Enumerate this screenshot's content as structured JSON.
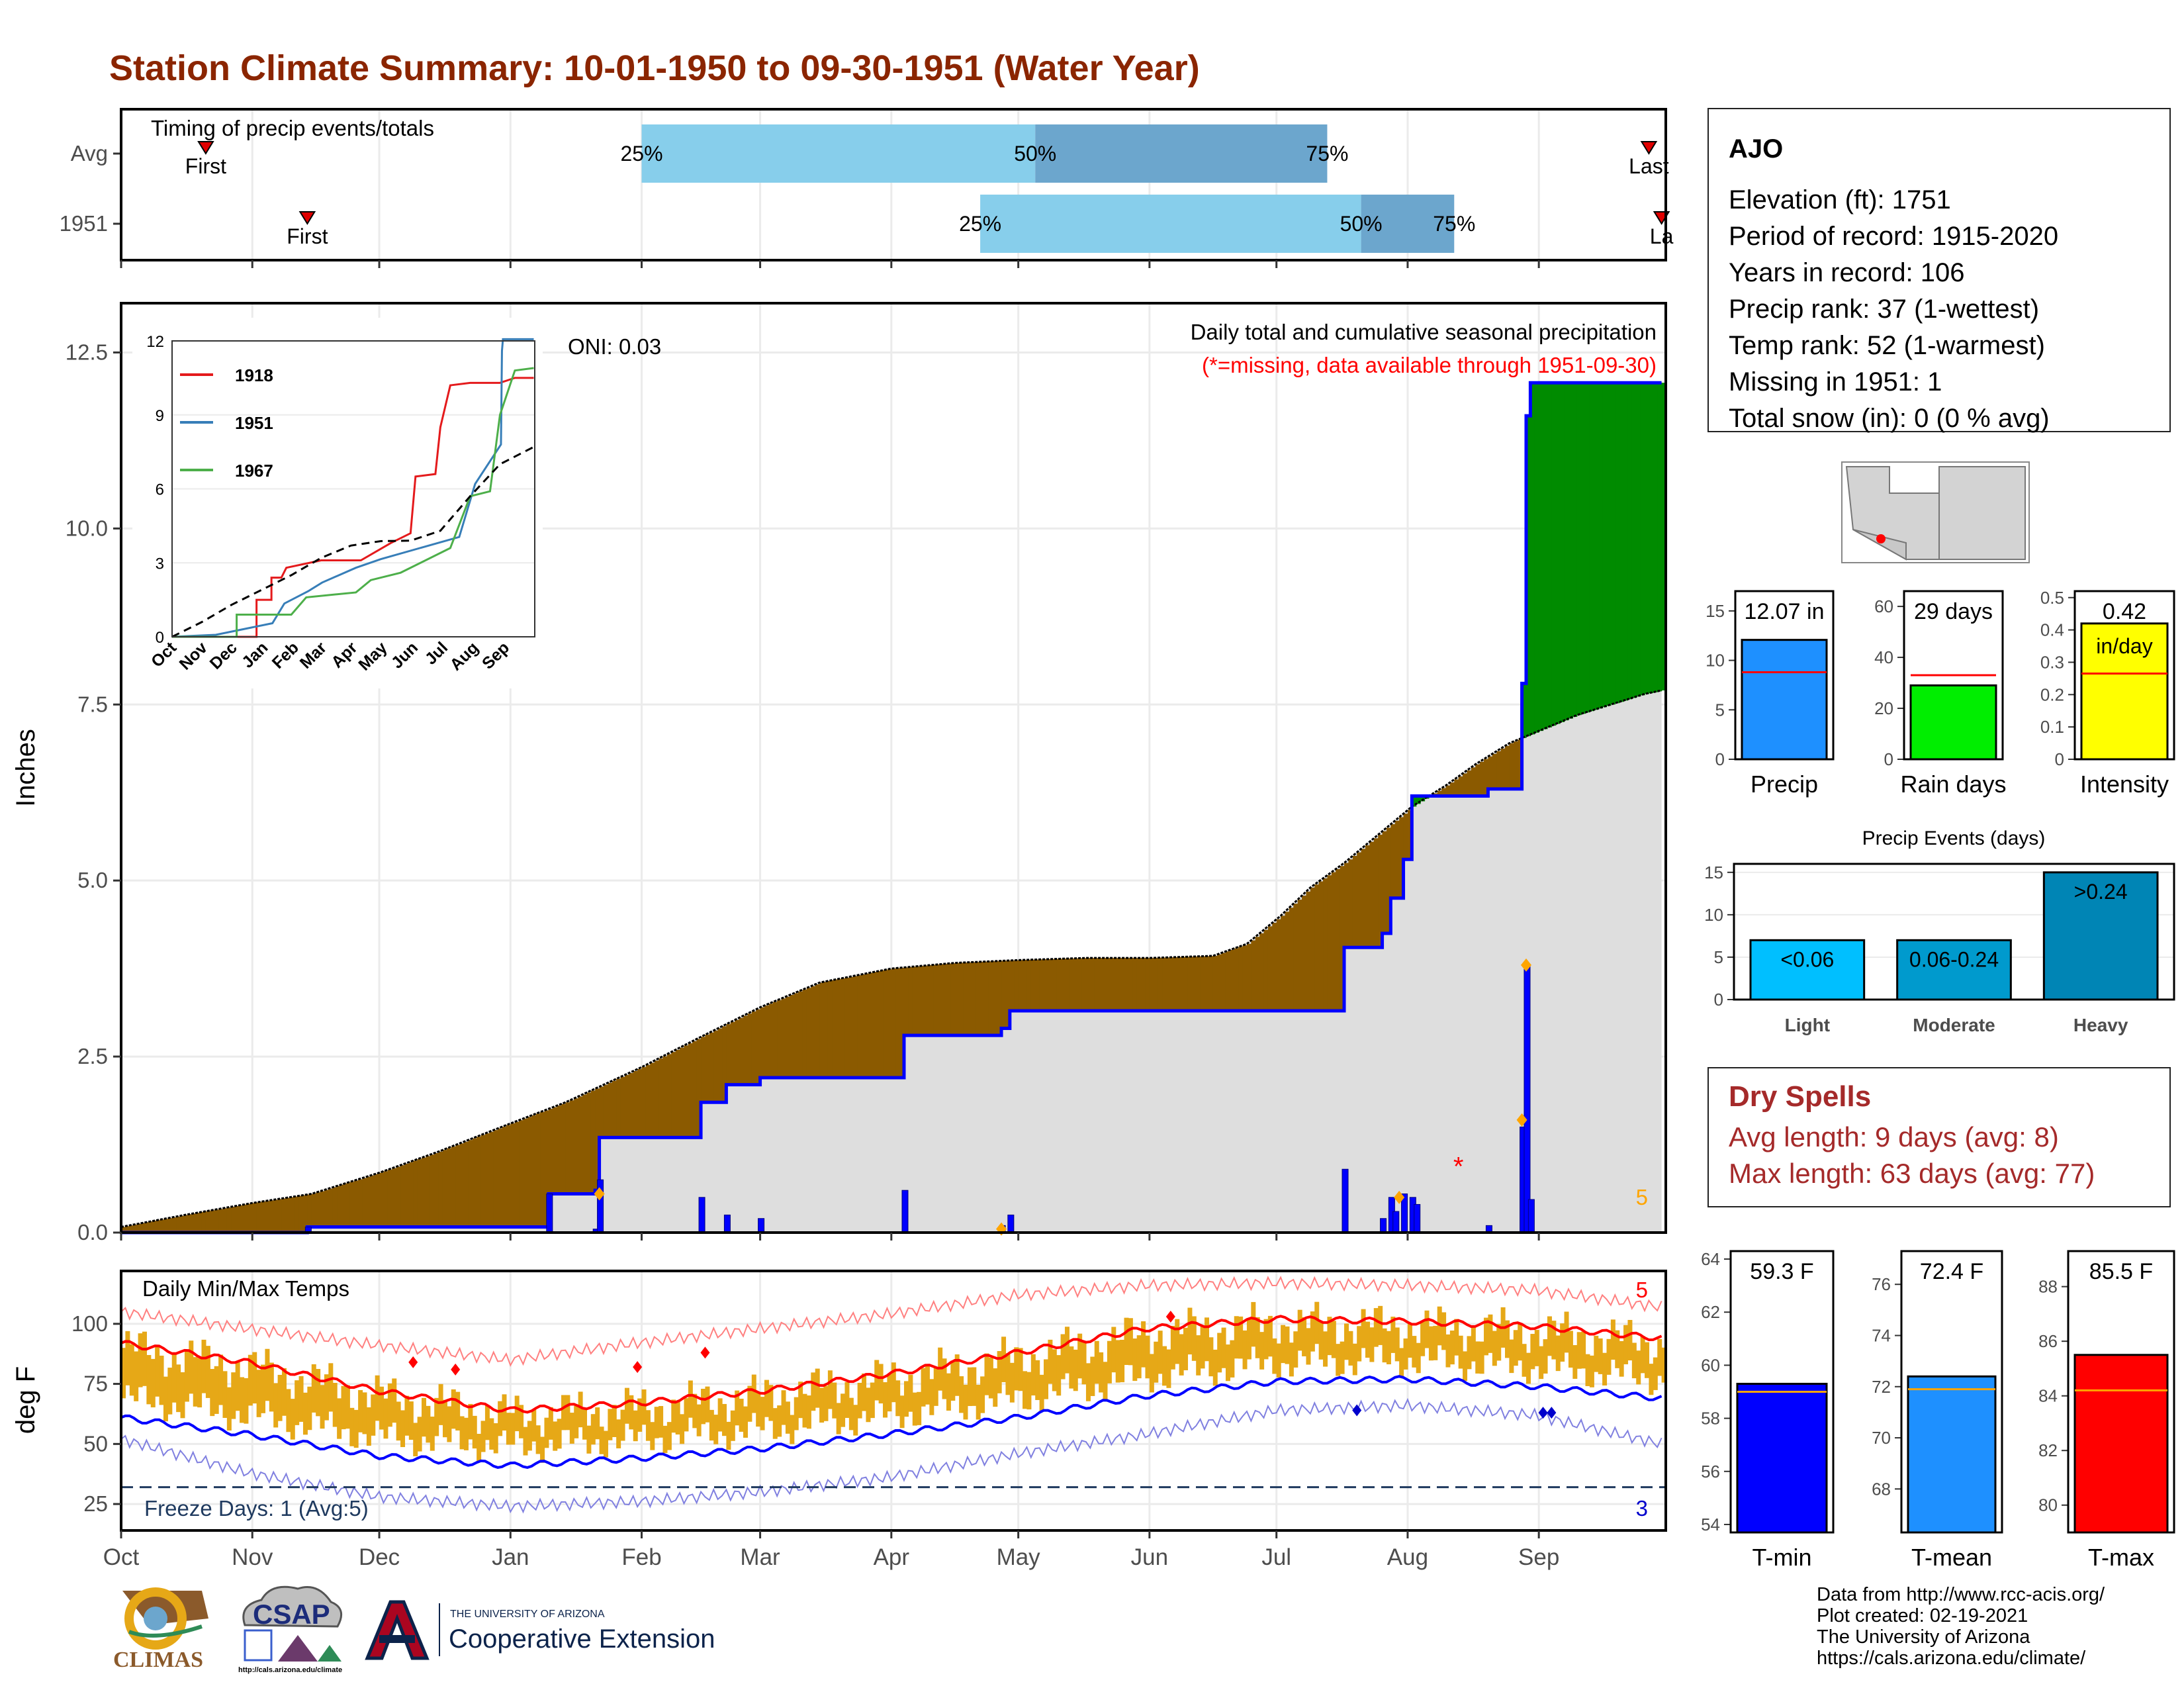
{
  "title": "Station Climate Summary: 10-01-1950 to 09-30-1951 (Water Year)",
  "station": {
    "name": "AJO",
    "lines": [
      "Elevation (ft): 1751",
      "Period of record: 1915-2020",
      "Years in record: 106",
      "Precip rank: 37 (1-wettest)",
      "Temp rank: 52 (1-warmest)",
      "Missing in 1951: 1",
      "Total snow (in): 0 (0 % avg)"
    ]
  },
  "dry_spells": {
    "title": "Dry Spells",
    "avg_length": "Avg length: 9 days (avg: 8)",
    "max_length": "Max length: 63 days (avg: 77)"
  },
  "credits": [
    "Data from http://www.rcc-acis.org/",
    "Plot created: 02-19-2021",
    "The University of Arizona",
    "https://cals.arizona.edu/climate/"
  ],
  "logos": {
    "climas": "CLIMAS",
    "csap": "CSAP",
    "csap_url": "http://cals.arizona.edu/climate",
    "ua_small": "THE UNIVERSITY OF ARIZONA",
    "ua_big": "Cooperative Extension"
  },
  "colors": {
    "title": "#8B2500",
    "brown_deficit": "#8B5A00",
    "green_surplus": "#008B00",
    "avg_fill": "#DEDEDE",
    "cum_line": "#0000FF",
    "timing_light": "#87CEEB",
    "timing_dark": "#6CA6CD",
    "temp_bars": "#E6A817",
    "max_line": "#FF0000",
    "min_line": "#0000FF"
  },
  "months": [
    "Oct",
    "Nov",
    "Dec",
    "Jan",
    "Feb",
    "Mar",
    "Apr",
    "May",
    "Jun",
    "Jul",
    "Aug",
    "Sep"
  ],
  "chart_data": [
    {
      "type": "bar",
      "name": "timing",
      "title": "Timing of precip events/totals",
      "rows": [
        {
          "label": "Avg",
          "first_day": 20,
          "q25_day": 123,
          "q50_day": 216,
          "q75_day": 285,
          "last_day": 361,
          "labels": {
            "first": "First",
            "last": "Last",
            "q25": "25%",
            "q50": "50%",
            "q75": "75%"
          }
        },
        {
          "label": "1951",
          "first_day": 44,
          "q25_day": 203,
          "q50_day": 293,
          "q75_day": 315,
          "last_day": 364,
          "labels": {
            "first": "First",
            "last": "La",
            "q25": "25%",
            "q50": "50%",
            "q75": "75%"
          }
        }
      ]
    },
    {
      "type": "area",
      "name": "cumulative_precip",
      "title": "Daily total and cumulative seasonal precipitation",
      "subtitle": "(*=missing, data available through 1951-09-30)",
      "annotation": "ONI: 0.03",
      "ylabel": "Inches",
      "ylim": [
        0,
        13
      ],
      "yticks": [
        0.0,
        2.5,
        5.0,
        7.5,
        10.0,
        12.5
      ],
      "max_daily_count": "5",
      "avg_cumulative": [
        [
          0,
          0.08
        ],
        [
          15,
          0.25
        ],
        [
          31,
          0.42
        ],
        [
          45,
          0.55
        ],
        [
          61,
          0.85
        ],
        [
          75,
          1.15
        ],
        [
          92,
          1.55
        ],
        [
          105,
          1.85
        ],
        [
          123,
          2.35
        ],
        [
          136,
          2.75
        ],
        [
          151,
          3.2
        ],
        [
          165,
          3.55
        ],
        [
          182,
          3.75
        ],
        [
          197,
          3.83
        ],
        [
          212,
          3.87
        ],
        [
          228,
          3.9
        ],
        [
          243,
          3.9
        ],
        [
          258,
          3.93
        ],
        [
          266,
          4.1
        ],
        [
          274,
          4.5
        ],
        [
          281,
          4.9
        ],
        [
          289,
          5.25
        ],
        [
          297,
          5.65
        ],
        [
          305,
          6.05
        ],
        [
          313,
          6.35
        ],
        [
          320,
          6.65
        ],
        [
          328,
          6.95
        ],
        [
          336,
          7.15
        ],
        [
          344,
          7.35
        ],
        [
          352,
          7.5
        ],
        [
          360,
          7.65
        ],
        [
          364,
          7.7
        ]
      ],
      "obs_cumulative": [
        [
          0,
          0
        ],
        [
          44,
          0
        ],
        [
          44,
          0.08
        ],
        [
          101,
          0.08
        ],
        [
          101,
          0.55
        ],
        [
          112,
          0.55
        ],
        [
          112,
          0.6
        ],
        [
          113,
          0.6
        ],
        [
          113,
          1.35
        ],
        [
          137,
          1.35
        ],
        [
          137,
          1.85
        ],
        [
          143,
          1.85
        ],
        [
          143,
          2.1
        ],
        [
          151,
          2.1
        ],
        [
          151,
          2.2
        ],
        [
          185,
          2.2
        ],
        [
          185,
          2.8
        ],
        [
          208,
          2.8
        ],
        [
          208,
          2.9
        ],
        [
          210,
          2.9
        ],
        [
          210,
          3.15
        ],
        [
          289,
          3.15
        ],
        [
          289,
          4.05
        ],
        [
          298,
          4.05
        ],
        [
          298,
          4.25
        ],
        [
          300,
          4.25
        ],
        [
          300,
          4.75
        ],
        [
          303,
          4.75
        ],
        [
          303,
          5.3
        ],
        [
          305,
          5.3
        ],
        [
          305,
          6.2
        ],
        [
          323,
          6.2
        ],
        [
          323,
          6.3
        ],
        [
          331,
          6.3
        ],
        [
          331,
          7.8
        ],
        [
          332,
          7.8
        ],
        [
          332,
          11.6
        ],
        [
          333,
          11.6
        ],
        [
          333,
          12.07
        ],
        [
          364,
          12.07
        ]
      ],
      "daily_precip": [
        [
          44,
          0.08
        ],
        [
          101,
          0.55
        ],
        [
          112,
          0.05
        ],
        [
          113,
          0.75
        ],
        [
          137,
          0.5
        ],
        [
          143,
          0.25
        ],
        [
          151,
          0.2
        ],
        [
          185,
          0.6
        ],
        [
          208,
          0.1
        ],
        [
          210,
          0.25
        ],
        [
          289,
          0.9
        ],
        [
          298,
          0.2
        ],
        [
          300,
          0.5
        ],
        [
          301,
          0.3
        ],
        [
          303,
          0.55
        ],
        [
          305,
          0.5
        ],
        [
          306,
          0.4
        ],
        [
          323,
          0.1
        ],
        [
          331,
          1.5
        ],
        [
          332,
          3.8
        ],
        [
          333,
          0.47
        ]
      ],
      "event_markers": [
        [
          113,
          0.55
        ],
        [
          208,
          0.05
        ],
        [
          302,
          0.5
        ],
        [
          331,
          1.6
        ],
        [
          332,
          3.8
        ]
      ],
      "missing_markers": [
        [
          316,
          1.0
        ]
      ]
    },
    {
      "type": "line",
      "name": "inset_cumulative",
      "series": [
        {
          "name": "1918",
          "points": [
            [
              0,
              0
            ],
            [
              85,
              0
            ],
            [
              85,
              1.5
            ],
            [
              100,
              1.5
            ],
            [
              100,
              2.4
            ],
            [
              110,
              2.4
            ],
            [
              115,
              2.8
            ],
            [
              150,
              3.1
            ],
            [
              190,
              3.1
            ],
            [
              220,
              3.8
            ],
            [
              240,
              4.2
            ],
            [
              245,
              6.5
            ],
            [
              265,
              6.6
            ],
            [
              270,
              8.5
            ],
            [
              280,
              10.2
            ],
            [
              300,
              10.3
            ],
            [
              330,
              10.3
            ],
            [
              345,
              10.5
            ],
            [
              364,
              10.5
            ]
          ]
        },
        {
          "name": "1951",
          "points": [
            [
              0,
              0
            ],
            [
              44,
              0.08
            ],
            [
              101,
              0.55
            ],
            [
              113,
              1.35
            ],
            [
              137,
              1.85
            ],
            [
              151,
              2.2
            ],
            [
              185,
              2.8
            ],
            [
              210,
              3.15
            ],
            [
              289,
              4.05
            ],
            [
              305,
              6.2
            ],
            [
              331,
              7.8
            ],
            [
              332,
              11.6
            ],
            [
              333,
              12.07
            ],
            [
              364,
              12.07
            ]
          ]
        },
        {
          "name": "1967",
          "points": [
            [
              0,
              0
            ],
            [
              65,
              0
            ],
            [
              65,
              0.9
            ],
            [
              120,
              0.9
            ],
            [
              135,
              1.6
            ],
            [
              185,
              1.8
            ],
            [
              200,
              2.3
            ],
            [
              230,
              2.6
            ],
            [
              280,
              3.6
            ],
            [
              300,
              5.7
            ],
            [
              320,
              5.9
            ],
            [
              330,
              9.0
            ],
            [
              345,
              10.8
            ],
            [
              364,
              10.9
            ]
          ]
        }
      ],
      "average": [
        [
          0,
          0
        ],
        [
          30,
          0.6
        ],
        [
          60,
          1.3
        ],
        [
          90,
          1.9
        ],
        [
          120,
          2.5
        ],
        [
          150,
          3.2
        ],
        [
          180,
          3.7
        ],
        [
          210,
          3.88
        ],
        [
          240,
          3.9
        ],
        [
          270,
          4.3
        ],
        [
          300,
          5.7
        ],
        [
          330,
          7.0
        ],
        [
          364,
          7.7
        ]
      ],
      "ylim": [
        0,
        12
      ],
      "yticks": [
        0,
        3,
        6,
        9,
        12
      ]
    },
    {
      "type": "bar",
      "name": "summary_precip",
      "panels": [
        {
          "xlabel": "Precip",
          "label": "12.07 in",
          "value": 12.07,
          "avg": 8.8,
          "ylim": [
            0,
            17
          ],
          "yticks": [
            0,
            5,
            10,
            15
          ],
          "color": "#1E90FF"
        },
        {
          "xlabel": "Rain days",
          "label": "29 days",
          "value": 29,
          "avg": 33,
          "ylim": [
            0,
            66
          ],
          "yticks": [
            0,
            20,
            40,
            60
          ],
          "color": "#00EE00"
        },
        {
          "xlabel": "Intensity",
          "label": "0.42",
          "label2": "in/day",
          "value": 0.42,
          "avg": 0.265,
          "ylim": [
            0,
            0.52
          ],
          "yticks": [
            0.0,
            0.1,
            0.2,
            0.3,
            0.4,
            0.5
          ],
          "color": "#FFFF00"
        }
      ]
    },
    {
      "type": "bar",
      "name": "precip_events",
      "title": "Precip Events (days)",
      "categories": [
        "Light",
        "Moderate",
        "Heavy"
      ],
      "labels": [
        "<0.06",
        "0.06-0.24",
        ">0.24"
      ],
      "values": [
        7,
        7,
        15
      ],
      "ylim": [
        0,
        16
      ],
      "yticks": [
        0,
        5,
        10,
        15
      ]
    },
    {
      "type": "line",
      "name": "daily_temps",
      "title": "Daily Min/Max Temps",
      "ylabel": "deg F",
      "ylim": [
        14,
        122
      ],
      "yticks": [
        25,
        50,
        75,
        100
      ],
      "freeze_line": 32,
      "freeze_label": "Freeze Days: 1 (Avg:5)",
      "max_records_count": "5",
      "min_records_count": "3",
      "avg_max": [
        [
          0,
          92
        ],
        [
          30,
          84
        ],
        [
          61,
          72
        ],
        [
          92,
          64
        ],
        [
          122,
          67
        ],
        [
          151,
          72
        ],
        [
          181,
          79
        ],
        [
          212,
          88
        ],
        [
          242,
          98
        ],
        [
          273,
          102
        ],
        [
          304,
          101
        ],
        [
          334,
          99
        ],
        [
          364,
          94
        ]
      ],
      "avg_min": [
        [
          0,
          61
        ],
        [
          30,
          54
        ],
        [
          61,
          45
        ],
        [
          92,
          41
        ],
        [
          122,
          44
        ],
        [
          151,
          48
        ],
        [
          181,
          54
        ],
        [
          212,
          61
        ],
        [
          242,
          70
        ],
        [
          273,
          76
        ],
        [
          304,
          77
        ],
        [
          334,
          74
        ],
        [
          364,
          69
        ]
      ],
      "record_max": [
        [
          0,
          105
        ],
        [
          30,
          98
        ],
        [
          61,
          91
        ],
        [
          92,
          85
        ],
        [
          122,
          92
        ],
        [
          151,
          98
        ],
        [
          181,
          104
        ],
        [
          212,
          112
        ],
        [
          242,
          116
        ],
        [
          273,
          117
        ],
        [
          304,
          116
        ],
        [
          334,
          114
        ],
        [
          364,
          107
        ]
      ],
      "record_min": [
        [
          0,
          52
        ],
        [
          30,
          38
        ],
        [
          61,
          28
        ],
        [
          92,
          24
        ],
        [
          122,
          26
        ],
        [
          151,
          30
        ],
        [
          181,
          36
        ],
        [
          212,
          46
        ],
        [
          242,
          54
        ],
        [
          273,
          64
        ],
        [
          304,
          66
        ],
        [
          334,
          62
        ],
        [
          364,
          50
        ]
      ],
      "max_record_markers": [
        [
          69,
          84
        ],
        [
          79,
          81
        ],
        [
          122,
          82
        ],
        [
          138,
          88
        ],
        [
          248,
          103
        ]
      ],
      "min_record_markers": [
        [
          292,
          64
        ],
        [
          336,
          63
        ],
        [
          338,
          63
        ]
      ]
    },
    {
      "type": "bar",
      "name": "summary_temps",
      "panels": [
        {
          "xlabel": "T-min",
          "label": "59.3 F",
          "value": 59.3,
          "avg": 59.0,
          "ylim": [
            53.7,
            64.3
          ],
          "yticks": [
            54,
            56,
            58,
            60,
            62,
            64
          ],
          "color": "#0000FF"
        },
        {
          "xlabel": "T-mean",
          "label": "72.4 F",
          "value": 72.4,
          "avg": 71.9,
          "ylim": [
            66.3,
            77.3
          ],
          "yticks": [
            68,
            70,
            72,
            74,
            76
          ],
          "color": "#1E90FF"
        },
        {
          "xlabel": "T-max",
          "label": "85.5 F",
          "value": 85.5,
          "avg": 84.2,
          "ylim": [
            79.0,
            89.3
          ],
          "yticks": [
            80,
            82,
            84,
            86,
            88
          ],
          "color": "#FF0000"
        }
      ]
    }
  ]
}
